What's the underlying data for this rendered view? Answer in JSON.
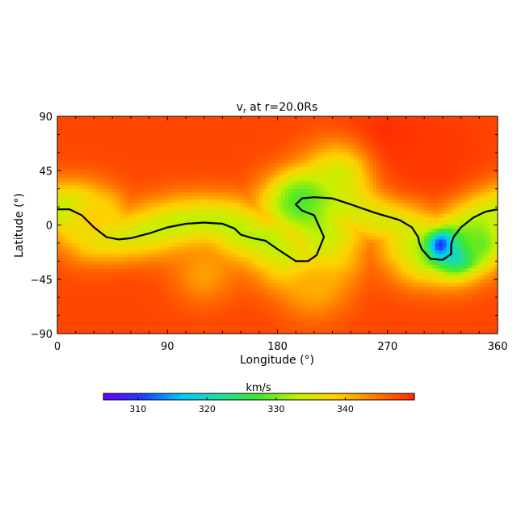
{
  "chart_data": {
    "type": "heatmap",
    "title": "v",
    "title_sub": "r",
    "title_suffix": " at r=20.0Rs",
    "xlabel": "Longitude (°)",
    "ylabel": "Latitude (°)",
    "xlim": [
      0,
      360
    ],
    "ylim": [
      -90,
      90
    ],
    "xticks": [
      0,
      90,
      180,
      270,
      360
    ],
    "yticks": [
      90,
      45,
      0,
      -45,
      -90
    ],
    "ytick_labels": [
      "90",
      "45",
      "0",
      "−45",
      "−90"
    ],
    "colorbar": {
      "label": "km/s",
      "range": [
        305,
        350
      ],
      "ticks": [
        310,
        320,
        330,
        340
      ],
      "placement": "bottom"
    },
    "colormap": [
      "#6a00ff",
      "#1a3cff",
      "#00c8ff",
      "#20e09a",
      "#3ee830",
      "#c8f000",
      "#ffd000",
      "#ff7a00",
      "#ff2a00"
    ],
    "field": {
      "background_high": 348,
      "band_amplitude": 16,
      "band_half_width_deg": 16,
      "band_min": 332,
      "peaks": [
        {
          "lon": 265,
          "lat": 62,
          "value": 351,
          "radius": 25
        },
        {
          "lon": 310,
          "lat": 55,
          "value": 349,
          "radius": 30
        },
        {
          "lon": 60,
          "lat": -70,
          "value": 348,
          "radius": 30
        },
        {
          "lon": 210,
          "lat": -50,
          "value": 341,
          "radius": 20
        },
        {
          "lon": 120,
          "lat": -40,
          "value": 342,
          "radius": 18
        },
        {
          "lon": 30,
          "lat": 5,
          "value": 339,
          "radius": 14
        },
        {
          "lon": 230,
          "lat": 40,
          "value": 334,
          "radius": 20
        },
        {
          "lon": 200,
          "lat": 20,
          "value": 328,
          "radius": 14
        },
        {
          "lon": 315,
          "lat": -17,
          "value": 305,
          "radius": 8
        },
        {
          "lon": 328,
          "lat": -24,
          "value": 316,
          "radius": 10
        },
        {
          "lon": 345,
          "lat": -15,
          "value": 329,
          "radius": 14
        }
      ]
    },
    "neutral_line": {
      "points": [
        [
          0,
          13
        ],
        [
          10,
          13
        ],
        [
          20,
          8
        ],
        [
          30,
          -2
        ],
        [
          40,
          -10
        ],
        [
          50,
          -12
        ],
        [
          60,
          -11
        ],
        [
          75,
          -7
        ],
        [
          90,
          -2
        ],
        [
          105,
          1
        ],
        [
          120,
          2
        ],
        [
          135,
          1
        ],
        [
          145,
          -3
        ],
        [
          150,
          -8
        ],
        [
          160,
          -11
        ],
        [
          170,
          -13
        ],
        [
          180,
          -20
        ],
        [
          195,
          -30
        ],
        [
          205,
          -30
        ],
        [
          212,
          -25
        ],
        [
          218,
          -10
        ],
        [
          210,
          8
        ],
        [
          200,
          12
        ],
        [
          195,
          17
        ],
        [
          200,
          22
        ],
        [
          210,
          23
        ],
        [
          225,
          22
        ],
        [
          240,
          17
        ],
        [
          260,
          10
        ],
        [
          280,
          4
        ],
        [
          290,
          -2
        ],
        [
          295,
          -10
        ],
        [
          296,
          -15
        ],
        [
          298,
          -20
        ],
        [
          305,
          -28
        ],
        [
          315,
          -29
        ],
        [
          322,
          -24
        ],
        [
          322,
          -16
        ],
        [
          324,
          -10
        ],
        [
          330,
          -2
        ],
        [
          340,
          6
        ],
        [
          350,
          11
        ],
        [
          360,
          13
        ]
      ]
    }
  }
}
